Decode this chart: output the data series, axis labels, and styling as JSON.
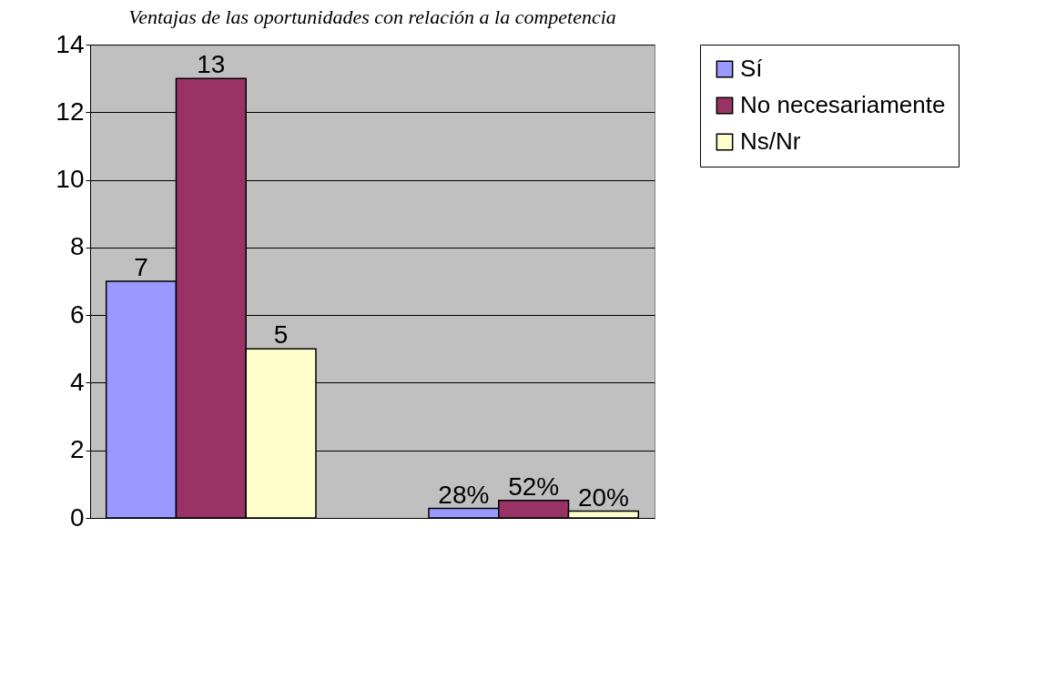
{
  "chart_data": {
    "type": "bar",
    "title": "Ventajas de las oportunidades con relación a la competencia",
    "categories": [
      null,
      null
    ],
    "series": [
      {
        "name": "Sí",
        "color": "#9999ff",
        "values": [
          7,
          0.28
        ],
        "value_labels": [
          "7",
          "28%"
        ]
      },
      {
        "name": "No necesariamente",
        "color": "#993366",
        "values": [
          13,
          0.52
        ],
        "value_labels": [
          "13",
          "52%"
        ]
      },
      {
        "name": "Ns/Nr",
        "color": "#ffffcc",
        "values": [
          5,
          0.2
        ],
        "value_labels": [
          "5",
          "20%"
        ]
      }
    ],
    "ylim": [
      0,
      14
    ],
    "yticks": [
      0,
      2,
      4,
      6,
      8,
      10,
      12,
      14
    ],
    "grid": "y",
    "legend": "right"
  }
}
